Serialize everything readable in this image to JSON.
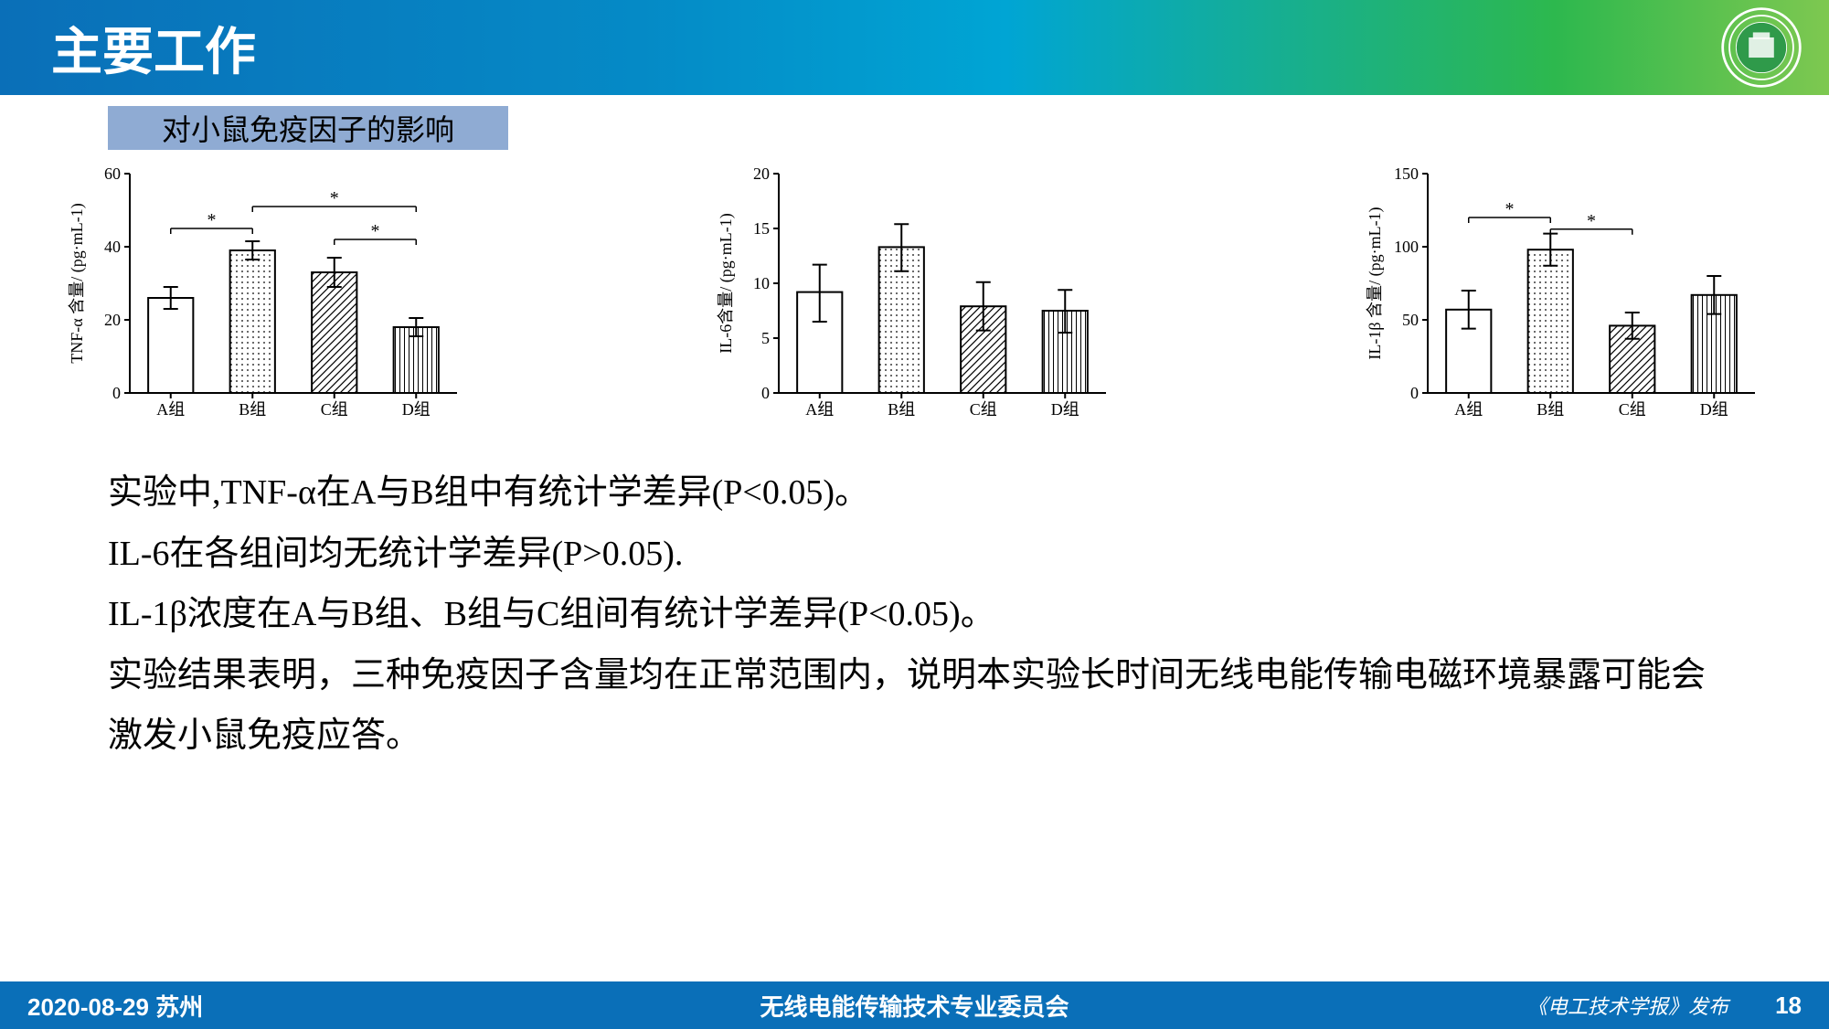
{
  "header": {
    "title": "主要工作",
    "logo_stroke": "#ffffff",
    "logo_fill": "#2f9a4a"
  },
  "subtitle": {
    "text": "对小鼠免疫因子的影响",
    "bg": "#8fabd3"
  },
  "charts": {
    "common": {
      "categories": [
        "A组",
        "B组",
        "C组",
        "D组"
      ],
      "bar_stroke": "#000000",
      "bar_fill": "#ffffff",
      "axis_stroke": "#000000",
      "tick_fontsize": 18,
      "label_fontsize": 18,
      "bar_width_ratio": 0.55,
      "patterns": [
        "plain",
        "dots",
        "diag",
        "vlines"
      ]
    },
    "chart1": {
      "ylabel": "TNF-α 含量/ (pg·mL-1)",
      "ylim": [
        0,
        60
      ],
      "ytick_step": 20,
      "values": [
        26,
        39,
        33,
        18
      ],
      "err_lo": [
        3,
        2.5,
        4,
        2.5
      ],
      "err_hi": [
        3,
        2.5,
        4,
        2.5
      ],
      "sig": [
        {
          "from": 0,
          "to": 1,
          "y": 45,
          "label": "*"
        },
        {
          "from": 1,
          "to": 3,
          "y": 51,
          "label": "*"
        },
        {
          "from": 2,
          "to": 3,
          "y": 42,
          "label": "*"
        }
      ]
    },
    "chart2": {
      "ylabel": "IL-6含量/ (pg·mL-1)",
      "ylim": [
        0,
        20
      ],
      "ytick_step": 5,
      "values": [
        9.2,
        13.3,
        7.9,
        7.5
      ],
      "err_lo": [
        2.7,
        2.2,
        2.2,
        2.0
      ],
      "err_hi": [
        2.5,
        2.1,
        2.2,
        1.9
      ],
      "sig": []
    },
    "chart3": {
      "ylabel": "IL-1β 含量/ (pg·mL-1)",
      "ylim": [
        0,
        150
      ],
      "ytick_step": 50,
      "values": [
        57,
        98,
        46,
        67
      ],
      "err_lo": [
        13,
        11,
        9,
        13
      ],
      "err_hi": [
        13,
        11,
        9,
        13
      ],
      "sig": [
        {
          "from": 0,
          "to": 1,
          "y": 120,
          "label": "*"
        },
        {
          "from": 1,
          "to": 2,
          "y": 112,
          "label": "*"
        }
      ]
    }
  },
  "body": {
    "line1": "实验中,TNF-α在A与B组中有统计学差异(P<0.05)。",
    "line2": "IL-6在各组间均无统计学差异(P>0.05).",
    "line3": "IL-1β浓度在A与B组、B组与C组间有统计学差异(P<0.05)。",
    "line4": "实验结果表明，三种免疫因子含量均在正常范围内，说明本实验长时间无线电能传输电磁环境暴露可能会激发小鼠免疫应答。"
  },
  "footer": {
    "date_loc": "2020-08-29  苏州",
    "center": "无线电能传输技术专业委员会",
    "right": "《电工技术学报》发布",
    "page": "18",
    "bg": "#0a6fb8"
  }
}
